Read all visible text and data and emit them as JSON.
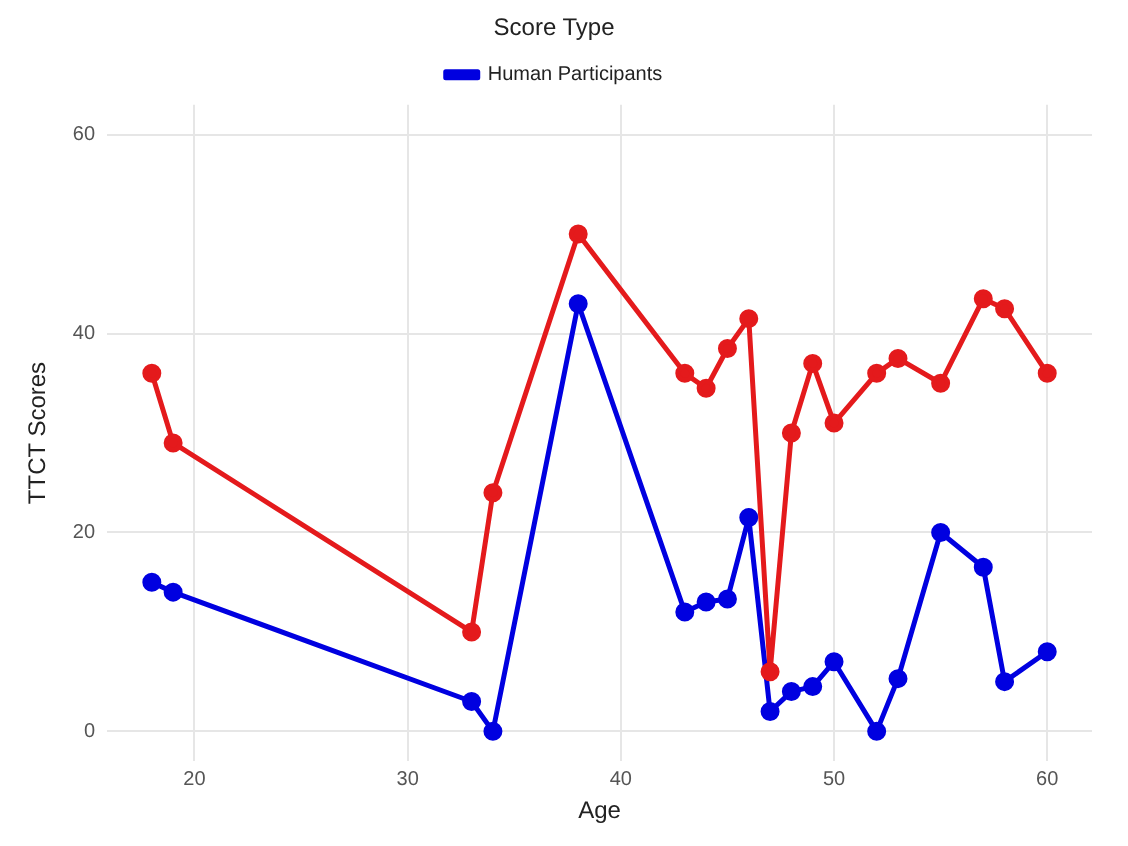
{
  "chart_data": {
    "type": "line",
    "xlabel": "Age",
    "ylabel": "TTCT Scores",
    "legend_title": "Score Type",
    "legend": "top",
    "x": [
      18,
      19,
      33,
      34,
      38,
      43,
      44,
      45,
      46,
      47,
      48,
      49,
      50,
      52,
      53,
      55,
      57,
      58,
      60
    ],
    "series": [
      {
        "color": "#e41a1c",
        "values": [
          36,
          29,
          10,
          24,
          50,
          36,
          34.5,
          38.5,
          41.5,
          6,
          30,
          37,
          31,
          36,
          37.5,
          35,
          43.5,
          42.5,
          36
        ]
      },
      {
        "name": "Human Participants",
        "color": "#0000e0",
        "values": [
          15,
          14,
          3,
          0,
          43,
          12,
          13,
          13.3,
          21.5,
          2,
          4,
          4.5,
          7,
          0,
          5.3,
          20,
          16.5,
          5,
          8
        ]
      }
    ],
    "xlim": [
      15.9,
      62.1
    ],
    "xticks": [
      20,
      30,
      40,
      50,
      60
    ],
    "ylim": [
      -3,
      63
    ],
    "yticks": [
      0,
      20,
      40,
      60
    ],
    "grid": true,
    "marker": "circle",
    "line_style": "solid"
  }
}
